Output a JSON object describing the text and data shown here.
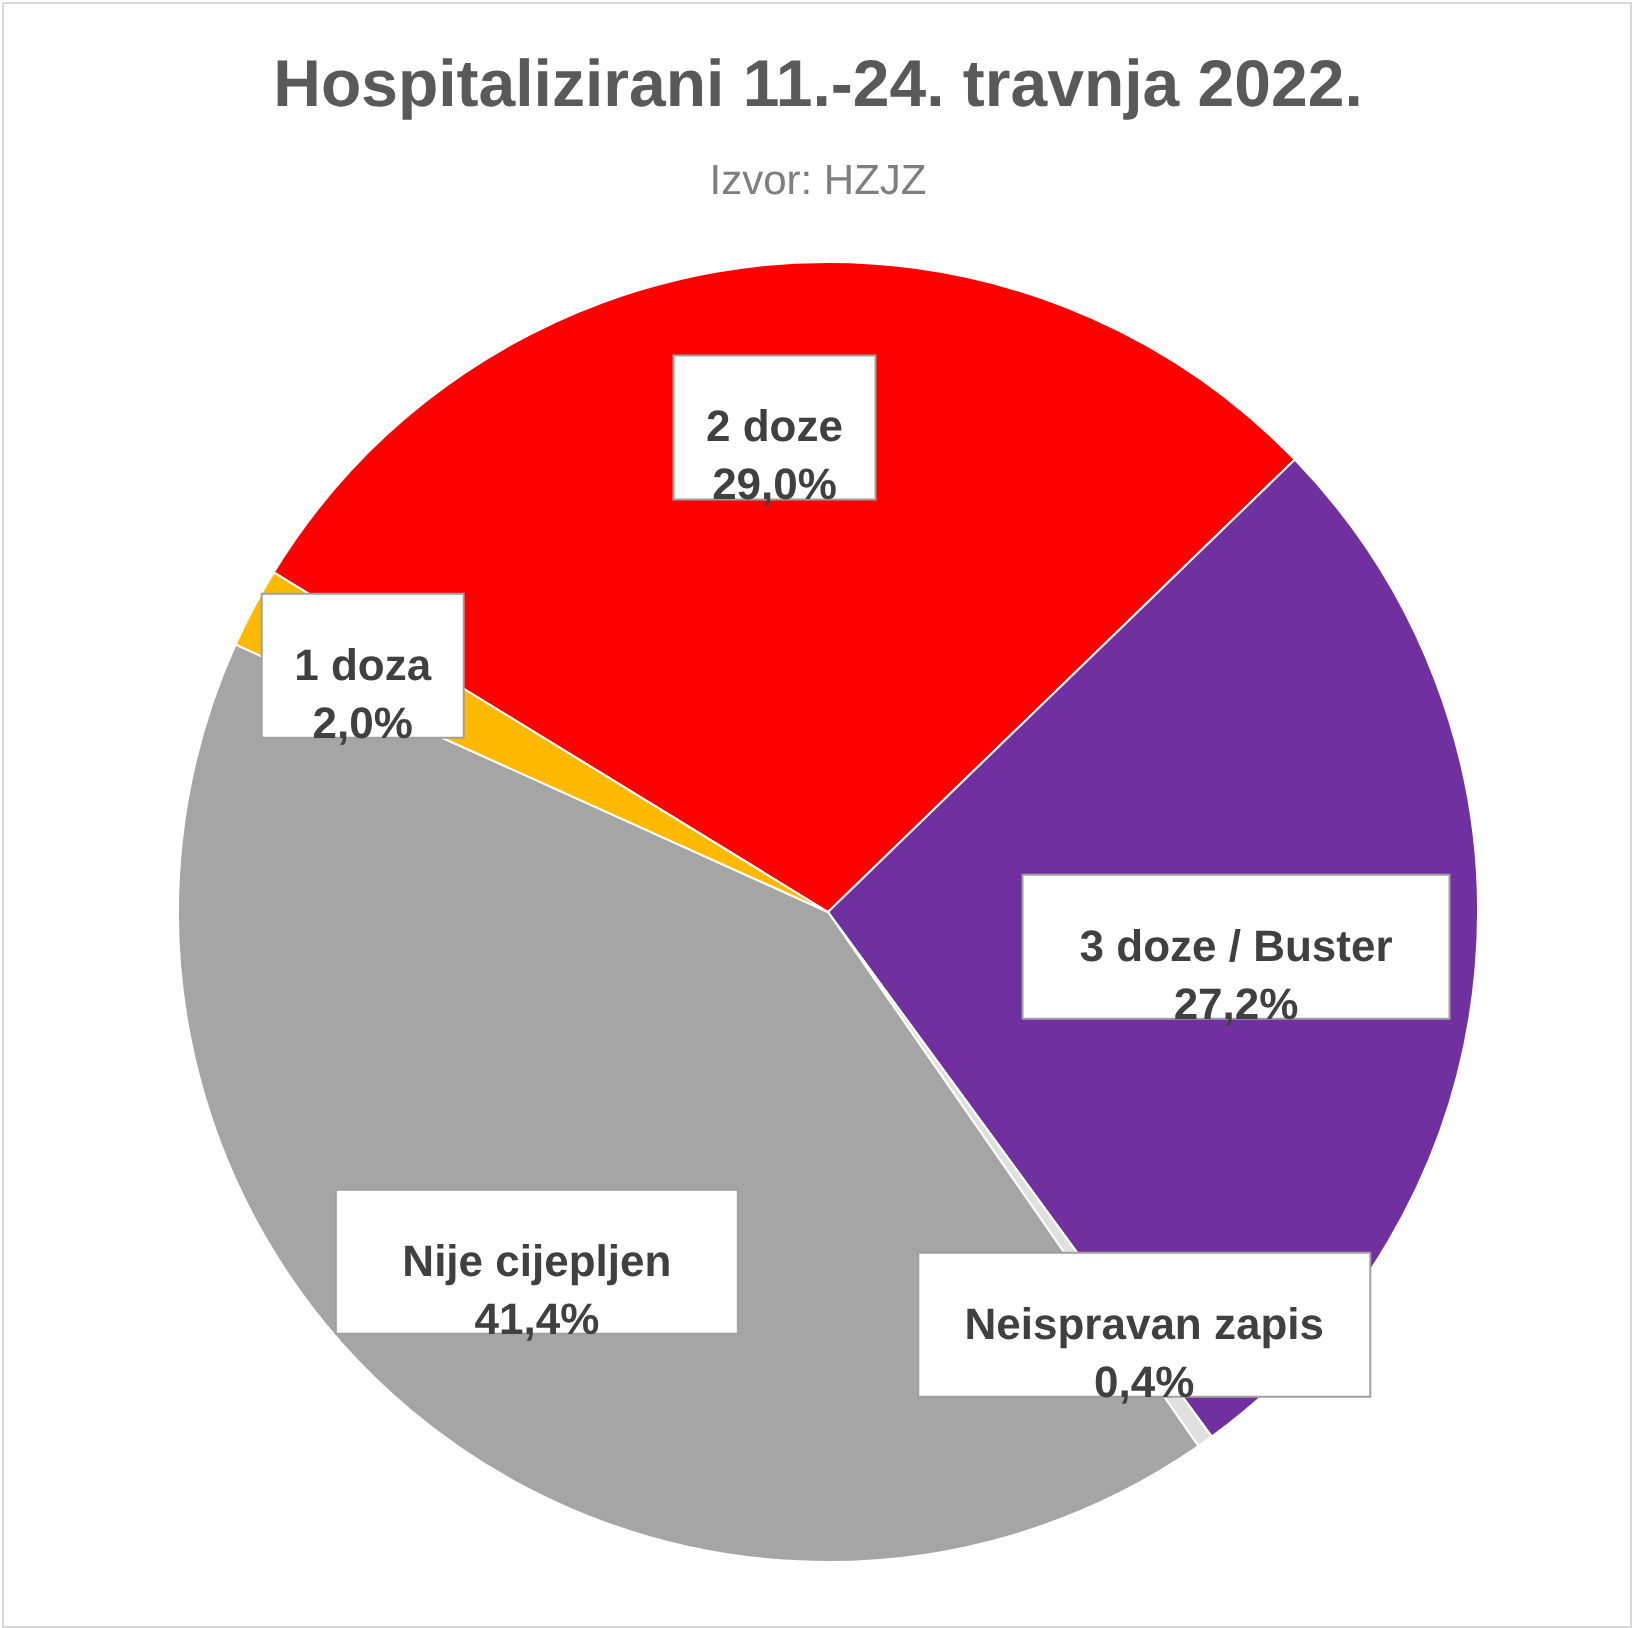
{
  "chart_data": {
    "type": "pie",
    "title": "Hospitalizirani 11.-24. travnja 2022.",
    "subtitle": "Izvor: HZJZ",
    "categories": [
      "2 doze",
      "3 doze / Buster",
      "Neispravan zapis",
      "Nije cijepljen",
      "1 doza"
    ],
    "values": [
      29.0,
      27.2,
      0.4,
      41.4,
      2.0
    ],
    "colors": [
      "#ff0000",
      "#7030a0",
      "#e0e0e0",
      "#a5a5a5",
      "#ffb900"
    ],
    "value_labels": [
      "29,0%",
      "27,2%",
      "0,4%",
      "41,4%",
      "2,0%"
    ]
  }
}
